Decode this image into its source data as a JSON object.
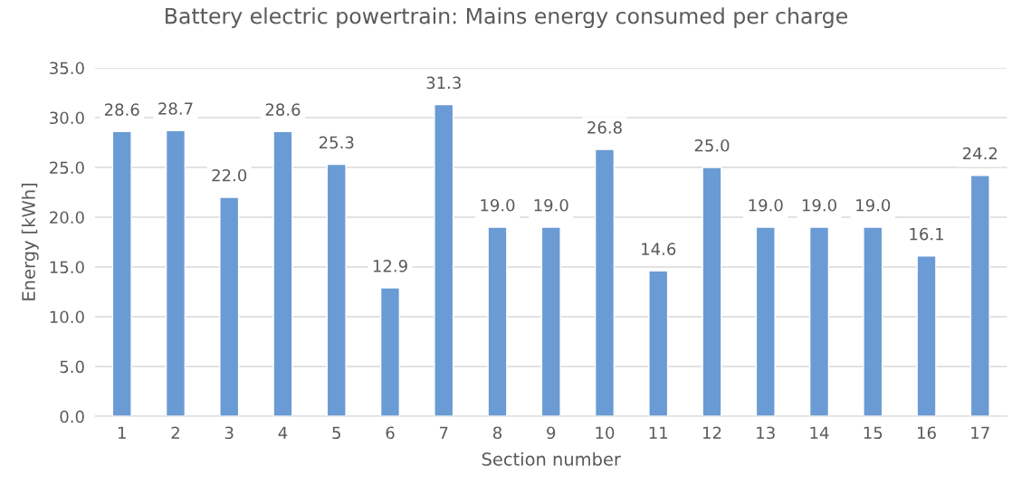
{
  "chart_data": {
    "type": "bar",
    "title": "Battery electric powertrain: Mains energy consumed per charge",
    "xlabel": "Section number",
    "ylabel": "Energy [kWh]",
    "categories": [
      "1",
      "2",
      "3",
      "4",
      "5",
      "6",
      "7",
      "8",
      "9",
      "10",
      "11",
      "12",
      "13",
      "14",
      "15",
      "16",
      "17"
    ],
    "values": [
      28.6,
      28.7,
      22.0,
      28.6,
      25.3,
      12.9,
      31.3,
      19.0,
      19.0,
      26.8,
      14.6,
      25.0,
      19.0,
      19.0,
      19.0,
      16.1,
      24.2
    ],
    "value_labels": [
      "28.6",
      "28.7",
      "22.0",
      "28.6",
      "25.3",
      "12.9",
      "31.3",
      "19.0",
      "19.0",
      "26.8",
      "14.6",
      "25.0",
      "19.0",
      "19.0",
      "19.0",
      "16.1",
      "24.2"
    ],
    "color": "#6a9bd4",
    "ylim": [
      0,
      35
    ],
    "yticks": [
      {
        "value": 0,
        "label": "0.0"
      },
      {
        "value": 5,
        "label": "5.0"
      },
      {
        "value": 10,
        "label": "10.0"
      },
      {
        "value": 15,
        "label": "15.0"
      },
      {
        "value": 20,
        "label": "20.0"
      },
      {
        "value": 25,
        "label": "25.0"
      },
      {
        "value": 30,
        "label": "30.0"
      },
      {
        "value": 35,
        "label": "35.0"
      }
    ],
    "grid": "y",
    "legend": false
  }
}
